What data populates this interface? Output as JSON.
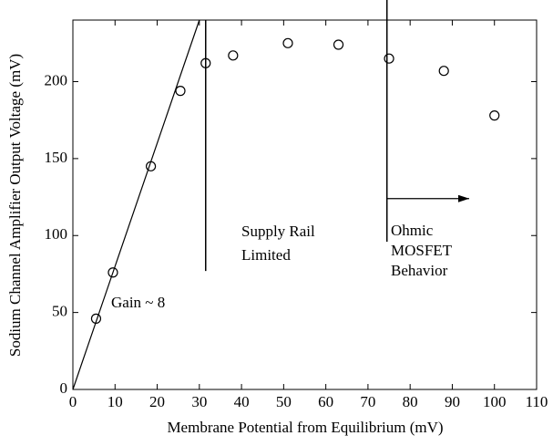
{
  "chart_data": {
    "type": "scatter",
    "xlabel": "Membrane Potential from Equilibrium (mV)",
    "ylabel": "Sodium Channel Amplifier Output Voltage (mV)",
    "xlim": [
      0,
      110
    ],
    "ylim": [
      0,
      240
    ],
    "xticks": [
      0,
      10,
      20,
      30,
      40,
      50,
      60,
      70,
      80,
      90,
      100,
      110
    ],
    "yticks": [
      0,
      50,
      100,
      150,
      200
    ],
    "series": [
      {
        "style": "markers",
        "color": "#000000",
        "x": [
          5.5,
          9.5,
          18.5,
          25.5,
          31.5,
          38,
          51,
          63,
          75,
          88,
          100
        ],
        "values": [
          46,
          76,
          145,
          194,
          212,
          217,
          225,
          224,
          215,
          207,
          178
        ]
      },
      {
        "style": "line",
        "color": "#000000",
        "x": [
          0,
          30
        ],
        "values": [
          0,
          240
        ]
      }
    ],
    "reference_lines": [
      {
        "x": 31.5,
        "y": [
          77,
          240
        ]
      },
      {
        "x": 74.5,
        "y": [
          96,
          255
        ]
      }
    ],
    "arrow": {
      "x": [
        74.5,
        94
      ],
      "y": 124
    },
    "annotations": [
      {
        "lines": [
          "Gain ~ 8"
        ]
      },
      {
        "lines": [
          "Supply Rail",
          "Limited"
        ]
      },
      {
        "lines": [
          "Ohmic",
          "MOSFET",
          "Behavior"
        ]
      }
    ]
  }
}
